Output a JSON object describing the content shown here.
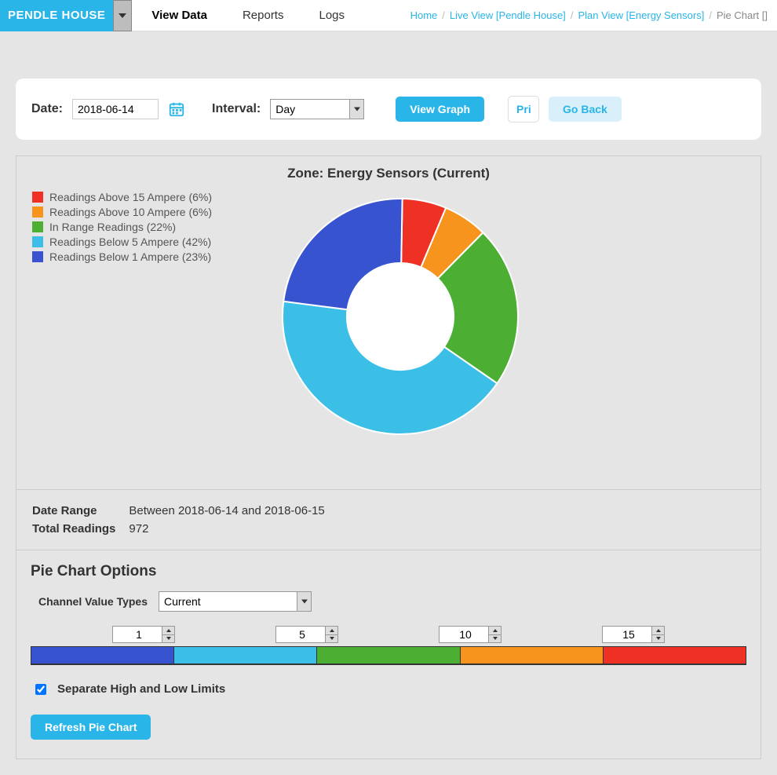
{
  "house_selector": "PENDLE HOUSE",
  "nav": {
    "view_data": "View Data",
    "reports": "Reports",
    "logs": "Logs"
  },
  "breadcrumbs": {
    "home": "Home",
    "live_view": "Live View [Pendle House]",
    "plan_view": "Plan View [Energy Sensors]",
    "current": "Pie Chart []"
  },
  "controls": {
    "date_label": "Date:",
    "date_value": "2018-06-14",
    "interval_label": "Interval:",
    "interval_value": "Day",
    "view_graph": "View Graph",
    "print": "Pri",
    "go_back": "Go Back"
  },
  "zone_title": "Zone: Energy Sensors (Current)",
  "chart": {
    "type": "donut",
    "inner_radius_pct": 45,
    "outer_radius_pct": 100,
    "slices": [
      {
        "label": "Readings Above 15 Ampere (6%)",
        "value": 6,
        "color": "#ee3124"
      },
      {
        "label": "Readings Above 10 Ampere (6%)",
        "value": 6,
        "color": "#f7941e"
      },
      {
        "label": "In Range Readings (22%)",
        "value": 22,
        "color": "#4caf34"
      },
      {
        "label": "Readings Below 5 Ampere (42%)",
        "value": 42,
        "color": "#3cbfe7"
      },
      {
        "label": "Readings Below 1 Ampere (23%)",
        "value": 23,
        "color": "#3753d0"
      }
    ],
    "stroke": "#ffffff",
    "stroke_width": 2,
    "background": "#e5e5e5"
  },
  "info": {
    "date_range_label": "Date Range",
    "date_range_value": "Between 2018-06-14 and 2018-06-15",
    "total_readings_label": "Total Readings",
    "total_readings_value": "972"
  },
  "options": {
    "title": "Pie Chart Options",
    "channel_label": "Channel Value Types",
    "channel_value": "Current",
    "thresholds": [
      "1",
      "5",
      "10",
      "15"
    ],
    "bar_colors": [
      "#3753d0",
      "#3cbfe7",
      "#4caf34",
      "#f7941e",
      "#ee3124"
    ],
    "separate_label": "Separate High and Low Limits",
    "separate_checked": true,
    "refresh": "Refresh Pie Chart"
  }
}
